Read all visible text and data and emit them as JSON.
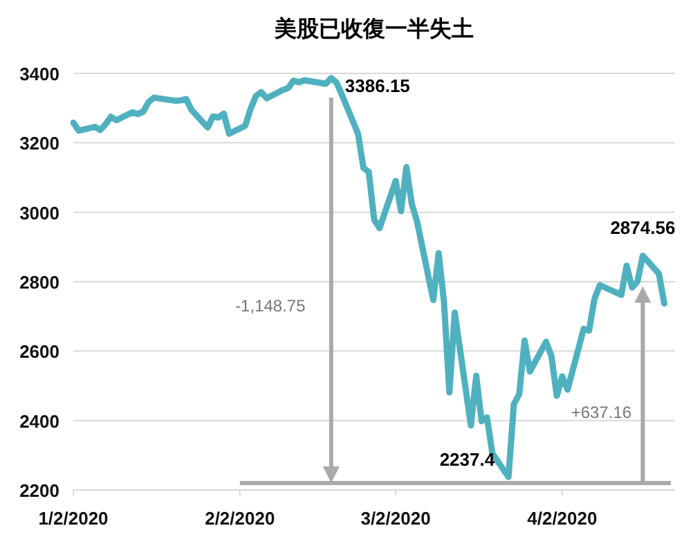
{
  "chart_data": {
    "type": "line",
    "title": "美股已收復一半失土",
    "x": [
      "2020-01-02",
      "2020-01-03",
      "2020-01-06",
      "2020-01-07",
      "2020-01-08",
      "2020-01-09",
      "2020-01-10",
      "2020-01-13",
      "2020-01-14",
      "2020-01-15",
      "2020-01-16",
      "2020-01-17",
      "2020-01-21",
      "2020-01-22",
      "2020-01-23",
      "2020-01-24",
      "2020-01-27",
      "2020-01-28",
      "2020-01-29",
      "2020-01-30",
      "2020-01-31",
      "2020-02-03",
      "2020-02-04",
      "2020-02-05",
      "2020-02-06",
      "2020-02-07",
      "2020-02-10",
      "2020-02-11",
      "2020-02-12",
      "2020-02-13",
      "2020-02-14",
      "2020-02-18",
      "2020-02-19",
      "2020-02-20",
      "2020-02-21",
      "2020-02-24",
      "2020-02-25",
      "2020-02-26",
      "2020-02-27",
      "2020-02-28",
      "2020-03-02",
      "2020-03-03",
      "2020-03-04",
      "2020-03-05",
      "2020-03-06",
      "2020-03-09",
      "2020-03-10",
      "2020-03-11",
      "2020-03-12",
      "2020-03-13",
      "2020-03-16",
      "2020-03-17",
      "2020-03-18",
      "2020-03-19",
      "2020-03-20",
      "2020-03-23",
      "2020-03-24",
      "2020-03-25",
      "2020-03-26",
      "2020-03-27",
      "2020-03-30",
      "2020-03-31",
      "2020-04-01",
      "2020-04-02",
      "2020-04-03",
      "2020-04-06",
      "2020-04-07",
      "2020-04-08",
      "2020-04-09",
      "2020-04-13",
      "2020-04-14",
      "2020-04-15",
      "2020-04-16",
      "2020-04-17",
      "2020-04-20",
      "2020-04-21"
    ],
    "series": [
      {
        "color": "#4fb1bf",
        "values": [
          3258,
          3235,
          3246,
          3237,
          3253,
          3275,
          3265,
          3288,
          3283,
          3289,
          3317,
          3330,
          3321,
          3322,
          3326,
          3295,
          3244,
          3276,
          3273,
          3284,
          3226,
          3249,
          3298,
          3335,
          3346,
          3328,
          3352,
          3358,
          3379,
          3374,
          3380,
          3370,
          3386.15,
          3373,
          3338,
          3226,
          3128,
          3116,
          2979,
          2954,
          3090,
          3003,
          3130,
          3024,
          2972,
          2747,
          2882,
          2741,
          2481,
          2711,
          2386,
          2529,
          2398,
          2409,
          2305,
          2237.4,
          2447,
          2476,
          2630,
          2541,
          2627,
          2585,
          2471,
          2527,
          2489,
          2664,
          2659,
          2750,
          2790,
          2762,
          2846,
          2783,
          2800,
          2874.56,
          2823,
          2737
        ]
      }
    ],
    "xlim": [
      "2020-01-02",
      "2020-04-23"
    ],
    "xticks": [
      {
        "value": "2020-01-02",
        "label": "1/2/2020"
      },
      {
        "value": "2020-02-02",
        "label": "2/2/2020"
      },
      {
        "value": "2020-03-02",
        "label": "3/2/2020"
      },
      {
        "value": "2020-04-02",
        "label": "4/2/2020"
      }
    ],
    "ylim": [
      2200,
      3400
    ],
    "yticks": [
      2200,
      2400,
      2600,
      2800,
      3000,
      3200,
      3400
    ],
    "grid": "y",
    "annotations": [
      {
        "text": "3386.15",
        "x": "2020-02-19",
        "y": 3386.15
      },
      {
        "text": "2237.4",
        "x": "2020-03-23",
        "y": 2237.4
      },
      {
        "text": "2874.56",
        "x": "2020-04-17",
        "y": 2874.56
      },
      "-1,148.75",
      "+637.16"
    ],
    "ref_lines": [
      {
        "axis": "y",
        "value": 2220,
        "color": "#aaaaaa"
      }
    ]
  }
}
